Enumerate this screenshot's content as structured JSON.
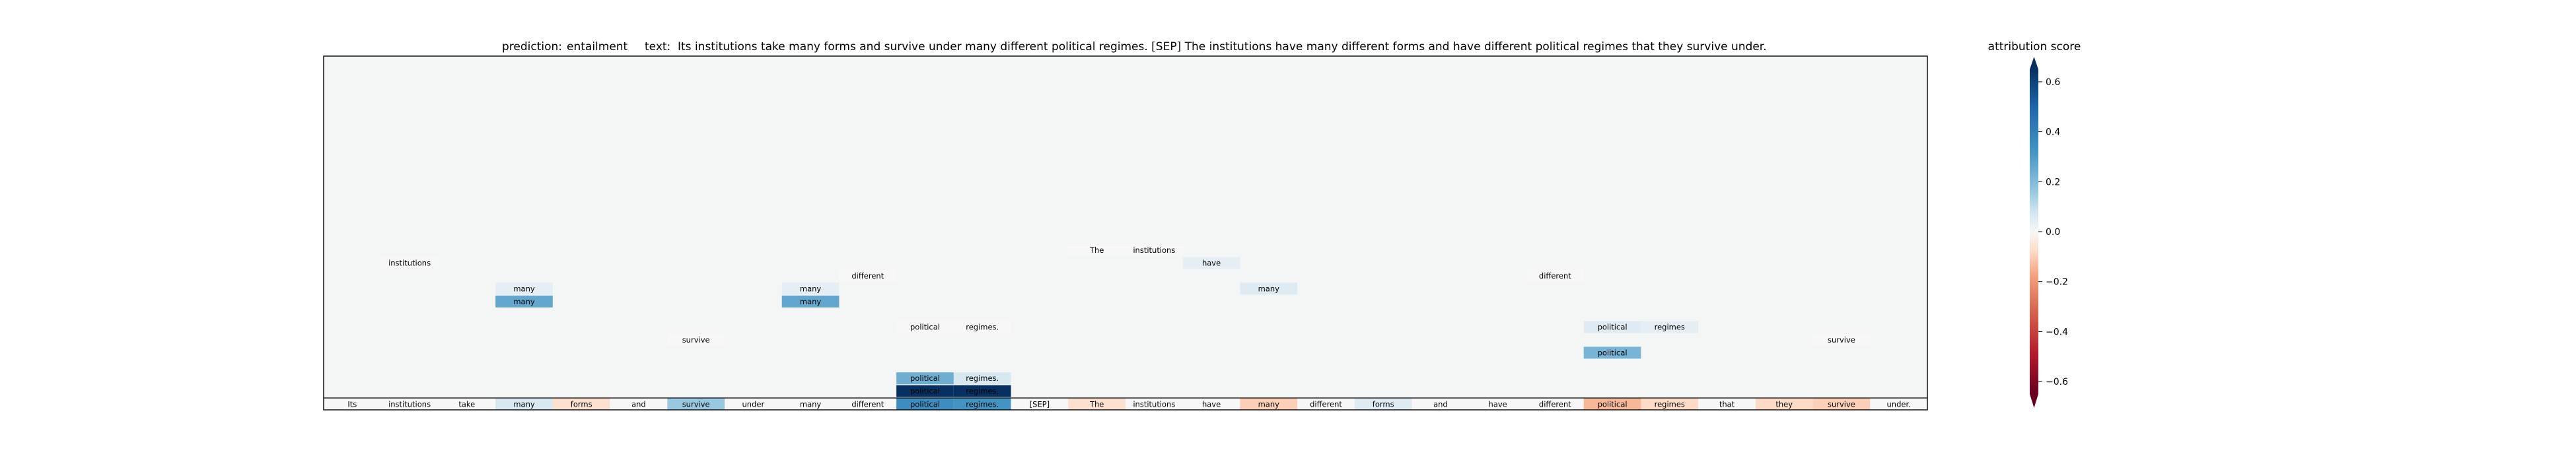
{
  "header": {
    "prediction_label": "prediction:",
    "prediction_value": "entailment",
    "text_label": "text:",
    "text_value": "Its institutions take many forms and survive under many different political regimes. [SEP] The institutions have many different forms and have different political regimes that they survive under."
  },
  "colorbar": {
    "title": "attribution score",
    "ticks": [
      "0.6",
      "0.4",
      "0.2",
      "0.0",
      "−0.2",
      "−0.4",
      "−0.6"
    ],
    "tick_values": [
      0.6,
      0.4,
      0.2,
      0.0,
      -0.2,
      -0.4,
      -0.6
    ],
    "range": [
      -0.65,
      0.65
    ],
    "colors": {
      "negative": "#67001f",
      "neutral": "#f7f7f7",
      "positive": "#053061"
    }
  },
  "chart_data": {
    "type": "heatmap",
    "title": "",
    "background": "#f4f6f6",
    "tokens": [
      "Its",
      "institutions",
      "take",
      "many",
      "forms",
      "and",
      "survive",
      "under",
      "many",
      "different",
      "political",
      "regimes.",
      "[SEP]",
      "The",
      "institutions",
      "have",
      "many",
      "different",
      "forms",
      "and",
      "have",
      "different",
      "political",
      "regimes",
      "that",
      "they",
      "survive",
      "under."
    ],
    "token_scores": [
      0.0,
      0.0,
      0.0,
      0.05,
      -0.05,
      0.0,
      0.14,
      0.0,
      0.0,
      0.0,
      0.32,
      0.3,
      0.0,
      -0.05,
      0.0,
      0.0,
      -0.08,
      0.0,
      0.04,
      0.0,
      0.0,
      0.0,
      -0.12,
      -0.06,
      0.0,
      -0.06,
      -0.08,
      0.0
    ],
    "attention_rows": 27,
    "cells": [
      {
        "row": 1,
        "col": 10,
        "text": "political",
        "value": 0.62
      },
      {
        "row": 1,
        "col": 11,
        "text": "regimes.",
        "value": 0.62
      },
      {
        "row": 2,
        "col": 10,
        "text": "political",
        "value": 0.22
      },
      {
        "row": 2,
        "col": 11,
        "text": "regimes.",
        "value": 0.05
      },
      {
        "row": 4,
        "col": 22,
        "text": "political",
        "value": 0.2
      },
      {
        "row": 5,
        "col": 6,
        "text": "survive",
        "value": 0.0
      },
      {
        "row": 5,
        "col": 26,
        "text": "survive",
        "value": 0.0
      },
      {
        "row": 6,
        "col": 10,
        "text": "political",
        "value": 0.0
      },
      {
        "row": 6,
        "col": 11,
        "text": "regimes.",
        "value": 0.0
      },
      {
        "row": 6,
        "col": 22,
        "text": "political",
        "value": 0.04
      },
      {
        "row": 6,
        "col": 23,
        "text": "regimes",
        "value": 0.03
      },
      {
        "row": 8,
        "col": 3,
        "text": "many",
        "value": 0.24
      },
      {
        "row": 8,
        "col": 8,
        "text": "many",
        "value": 0.24
      },
      {
        "row": 9,
        "col": 3,
        "text": "many",
        "value": 0.03
      },
      {
        "row": 9,
        "col": 8,
        "text": "many",
        "value": 0.03
      },
      {
        "row": 9,
        "col": 16,
        "text": "many",
        "value": 0.04
      },
      {
        "row": 10,
        "col": 9,
        "text": "different",
        "value": 0.0
      },
      {
        "row": 10,
        "col": 21,
        "text": "different",
        "value": 0.0
      },
      {
        "row": 11,
        "col": 1,
        "text": "institutions",
        "value": 0.0
      },
      {
        "row": 11,
        "col": 15,
        "text": "have",
        "value": 0.03
      },
      {
        "row": 12,
        "col": 13,
        "text": "The",
        "value": 0.0
      },
      {
        "row": 12,
        "col": 14,
        "text": "institutions",
        "value": 0.0
      }
    ]
  }
}
